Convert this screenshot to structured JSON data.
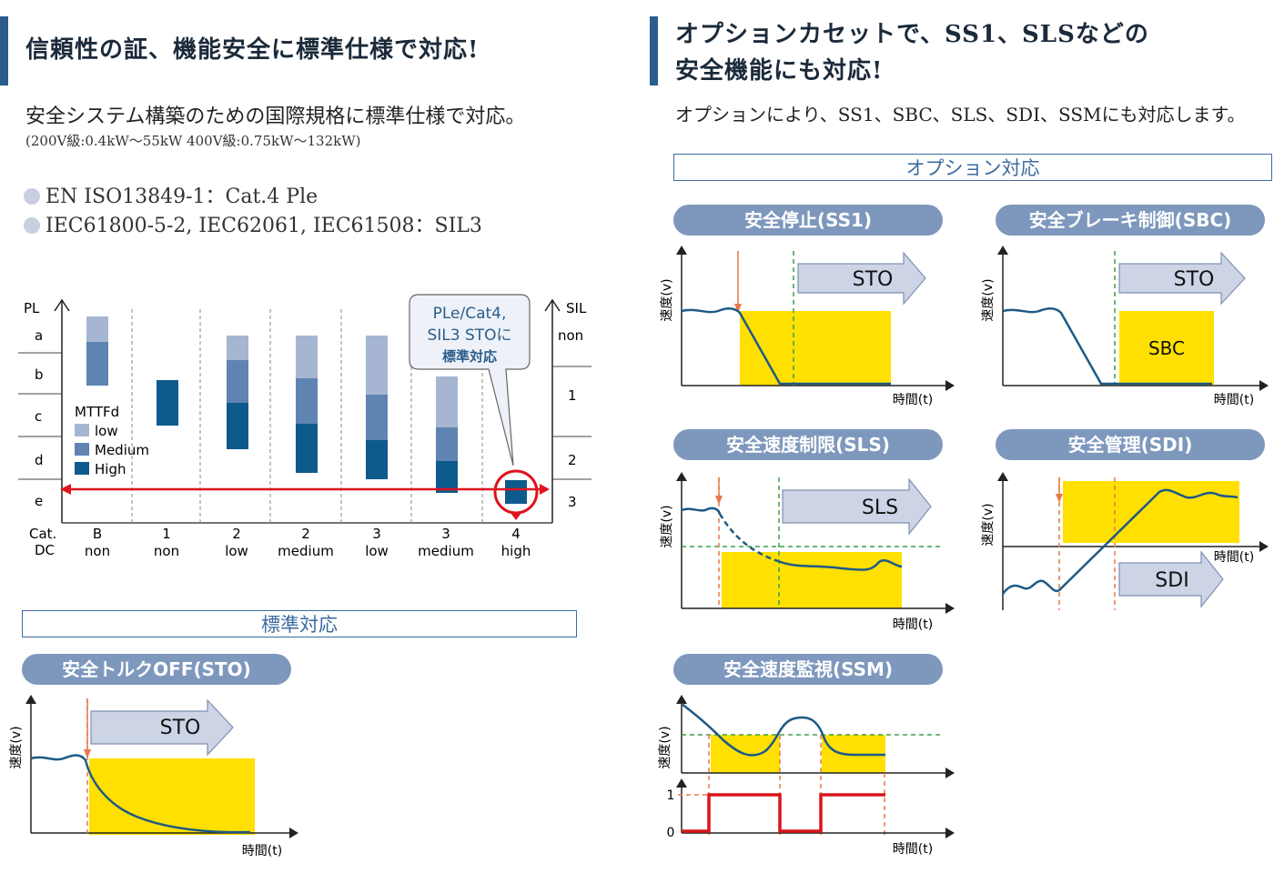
{
  "left": {
    "heading": "信頼性の証、機能安全に標準仕様で対応!",
    "intro": "安全システム構築のための国際規格に標準仕様で対応。",
    "note": "(200V級:0.4kW～55kW 400V級:0.75kW～132kW)",
    "standards": [
      "EN ISO13849-1：Cat.4 Ple",
      "IEC61800-5-2, IEC62061, IEC61508：SIL3"
    ],
    "pl_chart": {
      "pl_axis_label": "PL",
      "sil_axis_label": "SIL",
      "pl_levels": [
        "a",
        "b",
        "c",
        "d",
        "e"
      ],
      "sil_levels": [
        "non",
        "1",
        "2",
        "3"
      ],
      "cat_label": "Cat.",
      "dc_label": "DC",
      "columns": [
        {
          "cat": "B",
          "dc": "non"
        },
        {
          "cat": "1",
          "dc": "non"
        },
        {
          "cat": "2",
          "dc": "low"
        },
        {
          "cat": "2",
          "dc": "medium"
        },
        {
          "cat": "3",
          "dc": "low"
        },
        {
          "cat": "3",
          "dc": "medium"
        },
        {
          "cat": "4",
          "dc": "high"
        }
      ],
      "legend_title": "MTTFd",
      "legend": [
        "low",
        "Medium",
        "High"
      ],
      "callout": [
        "PLe/Cat4,",
        "SIL3 STOに",
        "標準対応"
      ],
      "colors": {
        "low": "#a6b6d2",
        "medium": "#5f84b1",
        "high": "#0d5a8c",
        "accent": "#e0141e"
      }
    },
    "standard_box": "標準対応",
    "sto": {
      "pill": "安全トルクOFF(STO)",
      "arrow": "STO",
      "ylabel": "速度(v)",
      "xlabel": "時間(t)"
    }
  },
  "right": {
    "heading_line1": "オプションカセットで、SS1、SLSなどの",
    "heading_line2": "安全機能にも対応!",
    "intro": "オプションにより、SS1、SBC、SLS、SDI、SSMにも対応します。",
    "option_box": "オプション対応",
    "ss1": {
      "pill": "安全停止(SS1)",
      "arrow": "STO",
      "ylabel": "速度(v)",
      "xlabel": "時間(t)"
    },
    "sbc": {
      "pill": "安全ブレーキ制御(SBC)",
      "arrow": "STO",
      "box": "SBC",
      "ylabel": "速度(v)",
      "xlabel": "時間(t)"
    },
    "sls": {
      "pill": "安全速度制限(SLS)",
      "arrow": "SLS",
      "ylabel": "速度(v)",
      "xlabel": "時間(t)"
    },
    "sdi": {
      "pill": "安全管理(SDI)",
      "arrow": "SDI",
      "ylabel": "速度(v)",
      "xlabel": "時間(t)"
    },
    "ssm": {
      "pill": "安全速度監視(SSM)",
      "ylabel": "速度(v)",
      "xlabel": "時間(t)",
      "y1": "1",
      "y0": "0"
    }
  }
}
